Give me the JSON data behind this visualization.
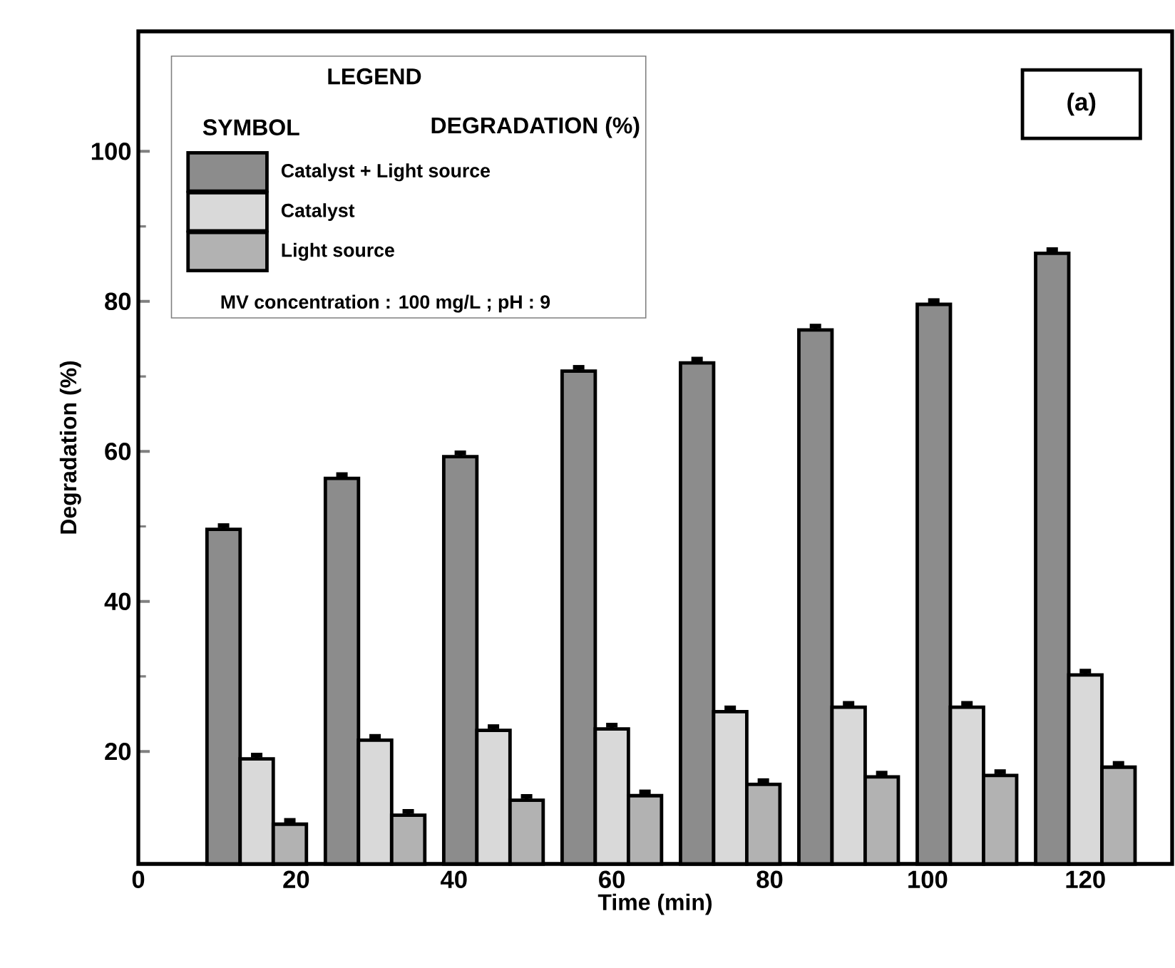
{
  "chart_data": {
    "type": "bar",
    "xlabel": "Time (min)",
    "ylabel": "Degradation (%)",
    "x": [
      15,
      30,
      45,
      60,
      75,
      90,
      105,
      120
    ],
    "series": [
      {
        "name": "Catalyst + Light source",
        "color": "#8c8c8c",
        "values": [
          49.6,
          56.4,
          59.3,
          70.7,
          71.8,
          76.2,
          79.6,
          86.4
        ],
        "errors": [
          0.5,
          0.5,
          0.5,
          0.5,
          0.5,
          0.5,
          0.5,
          0.5
        ]
      },
      {
        "name": "Catalyst",
        "color": "#d9d9d9",
        "values": [
          19.0,
          21.5,
          22.8,
          23.0,
          25.3,
          25.9,
          25.9,
          30.2
        ],
        "errors": [
          0.5,
          0.5,
          0.5,
          0.5,
          0.5,
          0.5,
          0.5,
          0.5
        ]
      },
      {
        "name": "Light source",
        "color": "#b2b2b2",
        "values": [
          10.3,
          11.5,
          13.5,
          14.1,
          15.6,
          16.6,
          16.8,
          17.9
        ],
        "errors": [
          0.5,
          0.5,
          0.5,
          0.5,
          0.5,
          0.5,
          0.5,
          0.5
        ]
      }
    ],
    "xlim": [
      0,
      131
    ],
    "ylim": [
      5,
      116
    ],
    "xticks": [
      0,
      20,
      40,
      60,
      80,
      100,
      120
    ],
    "yticks": [
      20,
      40,
      60,
      80,
      100
    ],
    "legend": "top left",
    "legend_title": "LEGEND",
    "annotations": [
      "SYMBOL",
      "DEGRADATION (%)",
      "MV concentration : 100 mg/L ; pH : 9",
      "(a)"
    ],
    "grid": false
  }
}
